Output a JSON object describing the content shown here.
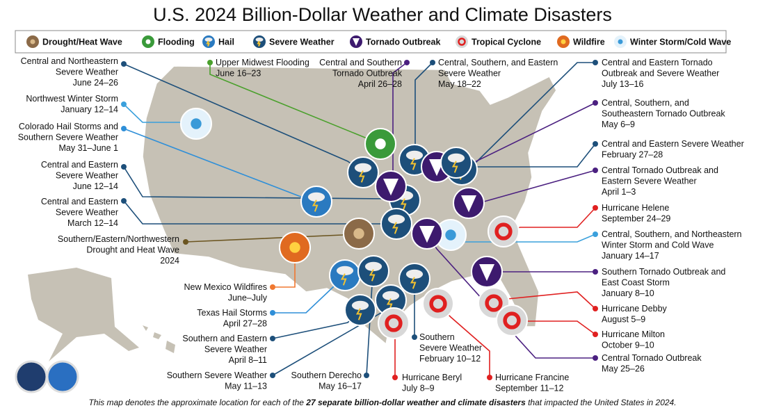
{
  "title": "U.S. 2024 Billion-Dollar Weather and Climate Disasters",
  "legend": [
    "Drought/Heat Wave",
    "Flooding",
    "Hail",
    "Severe Weather",
    "Tornado Outbreak",
    "Tropical Cyclone",
    "Wildfire",
    "Winter Storm/Cold Wave"
  ],
  "events": [
    {
      "lines": [
        "Central and Northeastern",
        "Severe Weather",
        "June 24–26"
      ]
    },
    {
      "lines": [
        "Northwest Winter Storm",
        "January 12–14"
      ]
    },
    {
      "lines": [
        "Colorado Hail Storms and",
        "Southern Severe Weather",
        "May 31–June 1"
      ]
    },
    {
      "lines": [
        "Central and Eastern",
        "Severe Weather",
        "June 12–14"
      ]
    },
    {
      "lines": [
        "Central and Eastern",
        "Severe Weather",
        "March 12–14"
      ]
    },
    {
      "lines": [
        "Southern/Eastern/Northwestern",
        "Drought and Heat Wave",
        "2024"
      ]
    },
    {
      "lines": [
        "New Mexico Wildfires",
        "June–July"
      ]
    },
    {
      "lines": [
        "Texas Hail Storms",
        "April 27–28"
      ]
    },
    {
      "lines": [
        "Southern and Eastern",
        "Severe Weather",
        "April 8–11"
      ]
    },
    {
      "lines": [
        "Southern Severe Weather",
        "May 11–13"
      ]
    },
    {
      "lines": [
        "Southern Derecho",
        "May 16–17"
      ]
    },
    {
      "lines": [
        "Upper Midwest Flooding",
        "June 16–23"
      ]
    },
    {
      "lines": [
        "Central and Southern",
        "Tornado Outbreak",
        "April 26–28"
      ]
    },
    {
      "lines": [
        "Central, Southern, and Eastern",
        "Severe Weather",
        "May 18–22"
      ]
    },
    {
      "lines": [
        "Hurricane Beryl",
        "July 8–9"
      ]
    },
    {
      "lines": [
        "Southern",
        "Severe Weather",
        "February 10–12"
      ]
    },
    {
      "lines": [
        "Hurricane Francine",
        "September 11–12"
      ]
    },
    {
      "lines": [
        "Central and Eastern Tornado",
        "Outbreak and Severe Weather",
        "July 13–16"
      ]
    },
    {
      "lines": [
        "Central, Southern, and",
        "Southeastern Tornado Outbreak",
        "May 6–9"
      ]
    },
    {
      "lines": [
        "Central and Eastern Severe Weather",
        "February 27–28"
      ]
    },
    {
      "lines": [
        "Central Tornado Outbreak and",
        "Eastern Severe Weather",
        "April 1–3"
      ]
    },
    {
      "lines": [
        "Hurricane Helene",
        "September 24–29"
      ]
    },
    {
      "lines": [
        "Central, Southern, and Northeastern",
        "Winter Storm and Cold Wave",
        "January 14–17"
      ]
    },
    {
      "lines": [
        "Southern Tornado Outbreak and",
        "East Coast Storm",
        "January 8–10"
      ]
    },
    {
      "lines": [
        "Hurricane Debby",
        "August 5–9"
      ]
    },
    {
      "lines": [
        "Hurricane Milton",
        "October 9–10"
      ]
    },
    {
      "lines": [
        "Central Tornado Outbreak",
        "May 25–26"
      ]
    }
  ],
  "footer": [
    "This map denotes the approximate location for each of the ",
    "27 separate billion-dollar weather and climate disasters",
    " that impacted the United States in 2024."
  ]
}
